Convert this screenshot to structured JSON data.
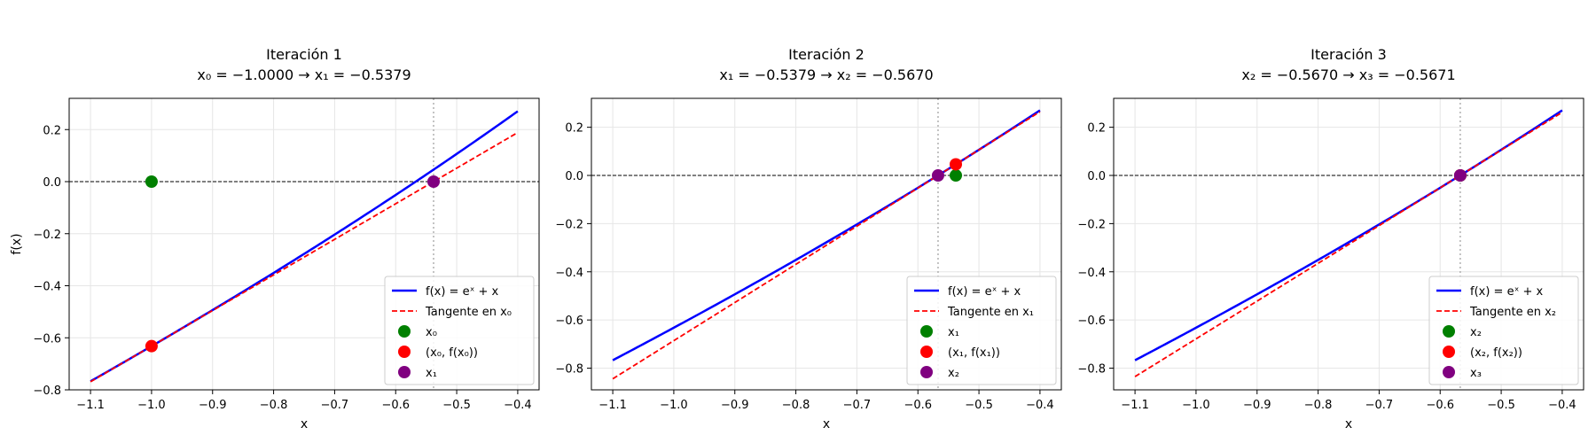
{
  "colors": {
    "function": "#0000ff",
    "tangent": "#ff0000",
    "x_old": "#008000",
    "tangent_point": "#ff0000",
    "x_new": "#800080",
    "grid": "#e6e6e6",
    "axis": "#000000",
    "vertical_line": "#b0b0b0"
  },
  "chart_data": [
    {
      "type": "line",
      "title": "Iteración 1",
      "subtitle": "x₀ = −1.0000 → x₁ = −0.5379",
      "xlabel": "x",
      "ylabel": "f(x)",
      "xlim": [
        -1.135,
        -0.365
      ],
      "ylim": [
        -0.8,
        0.32
      ],
      "xticks": [
        -1.1,
        -1.0,
        -0.9,
        -0.8,
        -0.7,
        -0.6,
        -0.5,
        -0.4
      ],
      "xtick_labels": [
        "−1.1",
        "−1.0",
        "−0.9",
        "−0.8",
        "−0.7",
        "−0.6",
        "−0.5",
        "−0.4"
      ],
      "yticks": [
        -0.8,
        -0.6,
        -0.4,
        -0.2,
        0.0,
        0.2
      ],
      "ytick_labels": [
        "−0.8",
        "−0.6",
        "−0.4",
        "−0.2",
        "0.0",
        "0.2"
      ],
      "grid": true,
      "legend_position": "bottom-right",
      "x_old": -1.0,
      "x_new": -0.5379,
      "series": [
        {
          "name": "f(x) = eˣ + x",
          "kind": "function",
          "x_range": [
            -1.1,
            -0.4
          ]
        },
        {
          "name": "Tangente en x₀",
          "kind": "tangent",
          "x_range": [
            -1.1,
            -0.4
          ]
        },
        {
          "name": "x₀",
          "kind": "point",
          "points": [
            [
              -1.0,
              0.0
            ]
          ]
        },
        {
          "name": "(x₀, f(x₀))",
          "kind": "point",
          "points": [
            [
              -1.0,
              -0.6321
            ]
          ]
        },
        {
          "name": "x₁",
          "kind": "point",
          "points": [
            [
              -0.5379,
              0.0
            ]
          ]
        }
      ]
    },
    {
      "type": "line",
      "title": "Iteración 2",
      "subtitle": "x₁ = −0.5379 → x₂ = −0.5670",
      "xlabel": "x",
      "ylabel": "",
      "xlim": [
        -1.135,
        -0.365
      ],
      "ylim": [
        -0.89,
        0.32
      ],
      "xticks": [
        -1.1,
        -1.0,
        -0.9,
        -0.8,
        -0.7,
        -0.6,
        -0.5,
        -0.4
      ],
      "xtick_labels": [
        "−1.1",
        "−1.0",
        "−0.9",
        "−0.8",
        "−0.7",
        "−0.6",
        "−0.5",
        "−0.4"
      ],
      "yticks": [
        -0.8,
        -0.6,
        -0.4,
        -0.2,
        0.0,
        0.2
      ],
      "ytick_labels": [
        "−0.8",
        "−0.6",
        "−0.4",
        "−0.2",
        "0.0",
        "0.2"
      ],
      "grid": true,
      "legend_position": "bottom-right",
      "x_old": -0.5379,
      "x_new": -0.567,
      "series": [
        {
          "name": "f(x) = eˣ + x",
          "kind": "function",
          "x_range": [
            -1.1,
            -0.4
          ]
        },
        {
          "name": "Tangente en x₁",
          "kind": "tangent",
          "x_range": [
            -1.1,
            -0.4
          ]
        },
        {
          "name": "x₁",
          "kind": "point",
          "points": [
            [
              -0.5379,
              0.0
            ]
          ]
        },
        {
          "name": "(x₁, f(x₁))",
          "kind": "point",
          "points": [
            [
              -0.5379,
              0.0461
            ]
          ]
        },
        {
          "name": "x₂",
          "kind": "point",
          "points": [
            [
              -0.567,
              0.0
            ]
          ]
        }
      ]
    },
    {
      "type": "line",
      "title": "Iteración 3",
      "subtitle": "x₂ = −0.5670 → x₃ = −0.5671",
      "xlabel": "x",
      "ylabel": "",
      "xlim": [
        -1.135,
        -0.365
      ],
      "ylim": [
        -0.89,
        0.32
      ],
      "xticks": [
        -1.1,
        -1.0,
        -0.9,
        -0.8,
        -0.7,
        -0.6,
        -0.5,
        -0.4
      ],
      "xtick_labels": [
        "−1.1",
        "−1.0",
        "−0.9",
        "−0.8",
        "−0.7",
        "−0.6",
        "−0.5",
        "−0.4"
      ],
      "yticks": [
        -0.8,
        -0.6,
        -0.4,
        -0.2,
        0.0,
        0.2
      ],
      "ytick_labels": [
        "−0.8",
        "−0.6",
        "−0.4",
        "−0.2",
        "0.0",
        "0.2"
      ],
      "grid": true,
      "legend_position": "bottom-right",
      "x_old": -0.567,
      "x_new": -0.5671,
      "series": [
        {
          "name": "f(x) = eˣ + x",
          "kind": "function",
          "x_range": [
            -1.1,
            -0.4
          ]
        },
        {
          "name": "Tangente en x₂",
          "kind": "tangent",
          "x_range": [
            -1.1,
            -0.4
          ]
        },
        {
          "name": "x₂",
          "kind": "point",
          "points": [
            [
              -0.567,
              0.0
            ]
          ]
        },
        {
          "name": "(x₂, f(x₂))",
          "kind": "point",
          "points": [
            [
              -0.567,
              0.0001
            ]
          ]
        },
        {
          "name": "x₃",
          "kind": "point",
          "points": [
            [
              -0.5671,
              0.0
            ]
          ]
        }
      ]
    }
  ]
}
